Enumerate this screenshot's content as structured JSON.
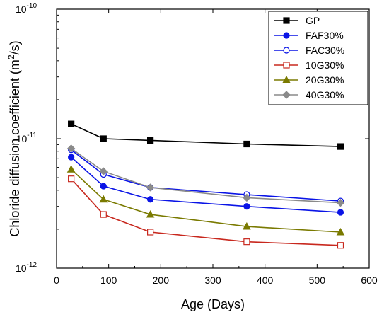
{
  "chart_data": {
    "type": "line",
    "title": "",
    "xlabel": "Age (Days)",
    "ylabel": "Chloride diffusion coefficient (m²/s)",
    "ylabel_parts": [
      "Chloride diffusion coefficient (m",
      "2",
      "/s)"
    ],
    "xlim": [
      0,
      600
    ],
    "ylim": [
      1e-12,
      1e-10
    ],
    "yscale": "log",
    "xticks": [
      0,
      100,
      200,
      300,
      400,
      500,
      600
    ],
    "yticks": [
      {
        "value": 1e-12,
        "base": "10",
        "exp": "-12"
      },
      {
        "value": 1e-11,
        "base": "10",
        "exp": "-11"
      },
      {
        "value": 1e-10,
        "base": "10",
        "exp": "-10"
      }
    ],
    "grid": false,
    "legend_position": "top-right",
    "x": [
      28,
      90,
      180,
      365,
      545
    ],
    "series": [
      {
        "name": "GP",
        "color": "#000000",
        "marker": "square",
        "fill": "filled",
        "values": [
          1.3e-11,
          1e-11,
          9.7e-12,
          9.1e-12,
          8.7e-12
        ]
      },
      {
        "name": "FAF30%",
        "color": "#0a14e6",
        "marker": "circle",
        "fill": "filled",
        "values": [
          7.2e-12,
          4.3e-12,
          3.4e-12,
          3e-12,
          2.7e-12
        ]
      },
      {
        "name": "FAC30%",
        "color": "#0a14e6",
        "marker": "circle",
        "fill": "open",
        "values": [
          8.2e-12,
          5.3e-12,
          4.2e-12,
          3.7e-12,
          3.3e-12
        ]
      },
      {
        "name": "10G30%",
        "color": "#c8281e",
        "marker": "square",
        "fill": "open",
        "values": [
          4.9e-12,
          2.6e-12,
          1.9e-12,
          1.6e-12,
          1.5e-12
        ]
      },
      {
        "name": "20G30%",
        "color": "#7a7a00",
        "marker": "triangle",
        "fill": "filled",
        "values": [
          5.8e-12,
          3.4e-12,
          2.6e-12,
          2.1e-12,
          1.9e-12
        ]
      },
      {
        "name": "40G30%",
        "color": "#8a8a8a",
        "marker": "diamond",
        "fill": "filled",
        "values": [
          8.4e-12,
          5.6e-12,
          4.2e-12,
          3.5e-12,
          3.2e-12
        ]
      }
    ]
  }
}
